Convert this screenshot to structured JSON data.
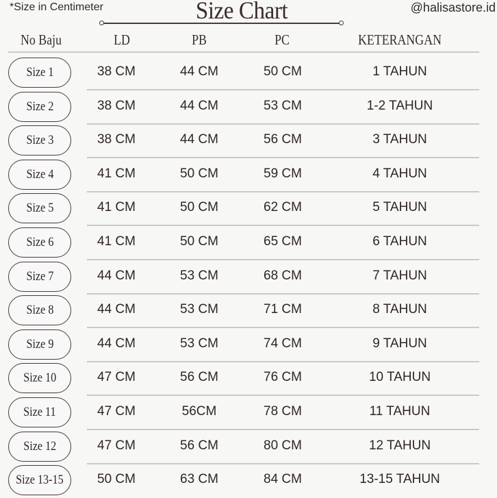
{
  "note": "*Size in Centimeter",
  "title": "Size Chart",
  "handle": "@halisastore.id",
  "headers": [
    "No Baju",
    "LD",
    "PB",
    "PC",
    "KETERANGAN"
  ],
  "rows": [
    [
      "Size 1",
      "38 CM",
      "44 CM",
      "50 CM",
      "1  TAHUN"
    ],
    [
      "Size 2",
      "38 CM",
      "44 CM",
      "53 CM",
      "1-2 TAHUN"
    ],
    [
      "Size 3",
      "38 CM",
      "44 CM",
      "56 CM",
      "3 TAHUN"
    ],
    [
      "Size 4",
      "41 CM",
      "50 CM",
      "59 CM",
      "4 TAHUN"
    ],
    [
      "Size 5",
      "41 CM",
      "50 CM",
      "62 CM",
      "5 TAHUN"
    ],
    [
      "Size 6",
      "41 CM",
      "50 CM",
      "65 CM",
      "6 TAHUN"
    ],
    [
      "Size 7",
      "44 CM",
      "53 CM",
      "68 CM",
      "7 TAHUN"
    ],
    [
      "Size 8",
      "44 CM",
      "53 CM",
      "71 CM",
      "8 TAHUN"
    ],
    [
      "Size 9",
      "44 CM",
      "53 CM",
      "74 CM",
      "9 TAHUN"
    ],
    [
      "Size 10",
      "47 CM",
      "56 CM",
      "76 CM",
      "10 TAHUN"
    ],
    [
      "Size 11",
      "47 CM",
      "56CM",
      "78 CM",
      "11 TAHUN"
    ],
    [
      "Size 12",
      "47 CM",
      "56 CM",
      "80 CM",
      "12 TAHUN"
    ],
    [
      "Size 13-15",
      "50 CM",
      "63 CM",
      "84 CM",
      "13-15 TAHUN"
    ]
  ],
  "colors": {
    "text": "#2f2623",
    "accent": "#4a3b34",
    "divider": "#c9c9c9",
    "background": "#f7f7f6"
  }
}
